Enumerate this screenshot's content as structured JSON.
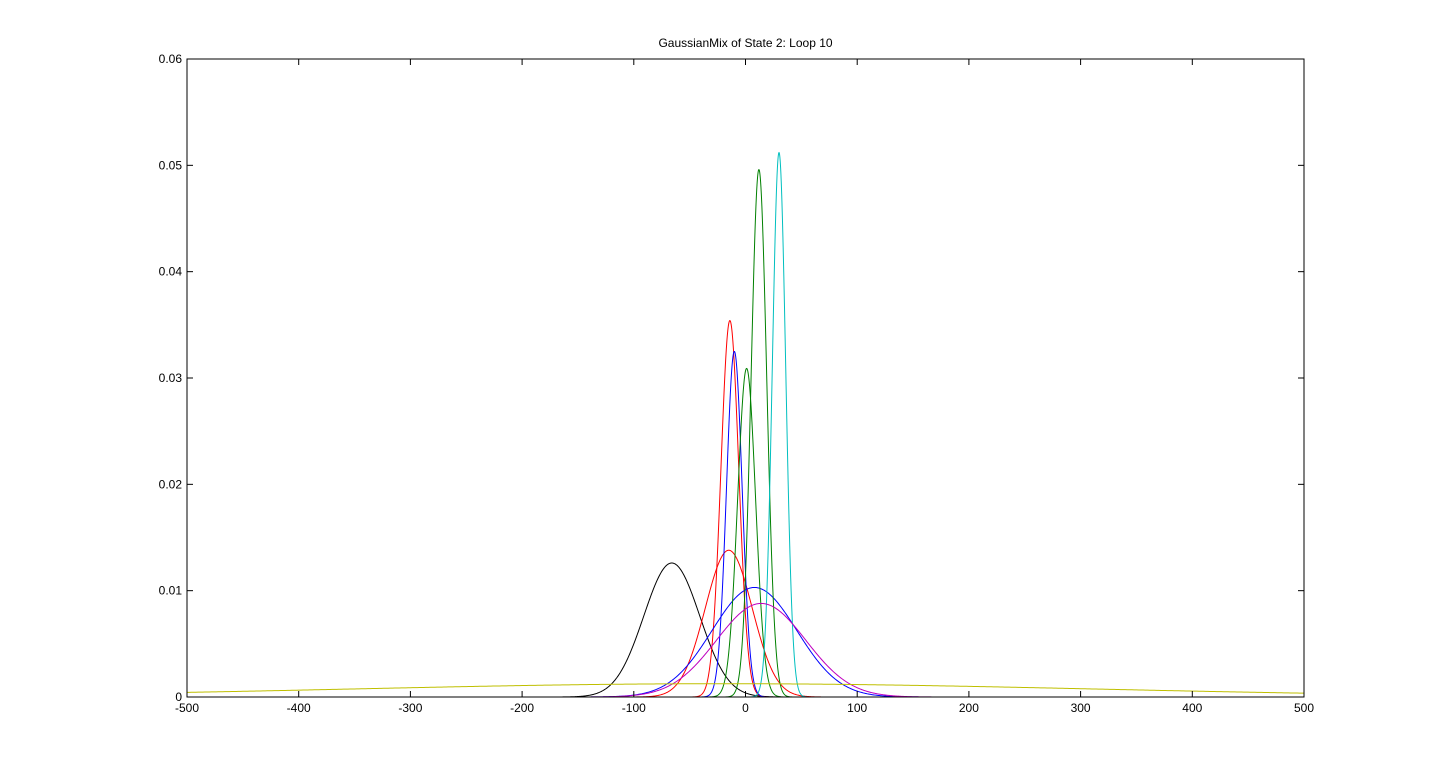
{
  "chart_data": {
    "type": "line",
    "title": "GaussianMix of State 2: Loop 10",
    "xlabel": "",
    "ylabel": "",
    "xlim": [
      -500,
      500
    ],
    "ylim": [
      0,
      0.06
    ],
    "grid": false,
    "x_ticks": [
      -500,
      -400,
      -300,
      -200,
      -100,
      0,
      100,
      200,
      300,
      400,
      500
    ],
    "x_tick_labels": [
      "-500",
      "-400",
      "-300",
      "-200",
      "-100",
      "0",
      "100",
      "200",
      "300",
      "400",
      "500"
    ],
    "y_ticks": [
      0,
      0.01,
      0.02,
      0.03,
      0.04,
      0.05,
      0.06
    ],
    "y_tick_labels": [
      "0",
      "0.01",
      "0.02",
      "0.03",
      "0.04",
      "0.05",
      "0.06"
    ],
    "series": [
      {
        "color": "#000000",
        "mean": -66,
        "sigma": 25,
        "peak": 0.0126
      },
      {
        "color": "#ff0000",
        "mean": -14,
        "sigma": 8,
        "peak": 0.0354
      },
      {
        "color": "#ff0000",
        "mean": -15,
        "sigma": 21,
        "peak": 0.0138
      },
      {
        "color": "#0000ff",
        "mean": -10,
        "sigma": 7,
        "peak": 0.0325
      },
      {
        "color": "#0000ff",
        "mean": 8,
        "sigma": 38,
        "peak": 0.0103
      },
      {
        "color": "#008000",
        "mean": 1,
        "sigma": 8,
        "peak": 0.0309
      },
      {
        "color": "#008000",
        "mean": 12,
        "sigma": 7,
        "peak": 0.0496
      },
      {
        "color": "#00bfbf",
        "mean": 30,
        "sigma": 6,
        "peak": 0.0512
      },
      {
        "color": "#bf00bf",
        "mean": 14,
        "sigma": 40,
        "peak": 0.0088
      },
      {
        "color": "#bfbf00",
        "mean": -20,
        "sigma": 330,
        "peak": 0.00125
      }
    ]
  }
}
